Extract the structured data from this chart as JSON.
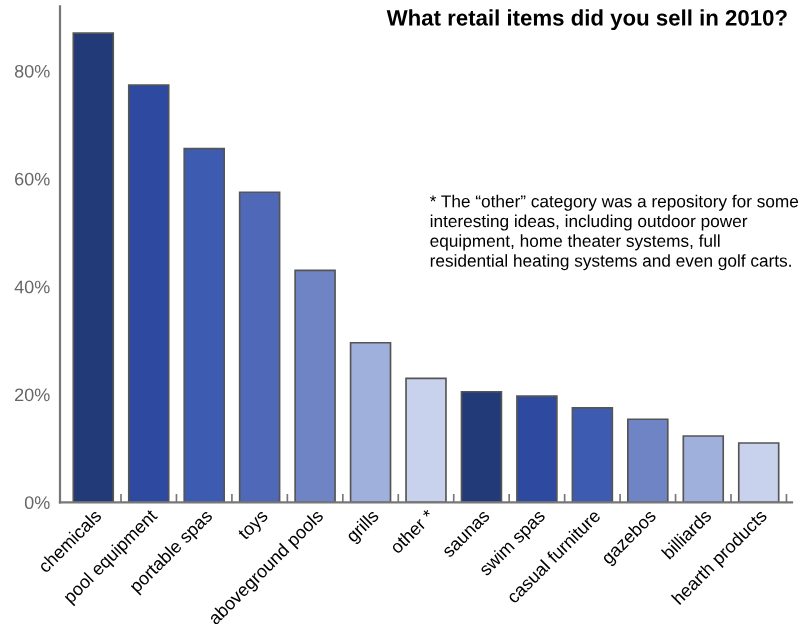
{
  "chart_data": {
    "type": "bar",
    "title": "What retail items did you sell in 2010?",
    "categories": [
      "chemicals",
      "pool equipment",
      "portable spas",
      "toys",
      "aboveground pools",
      "grills",
      "other *",
      "saunas",
      "swim spas",
      "casual furniture",
      "gazebos",
      "billiards",
      "hearth products"
    ],
    "values": [
      87,
      77.4,
      65.6,
      57.5,
      43,
      29.6,
      23,
      20.5,
      19.7,
      17.5,
      15.4,
      12.3,
      11
    ],
    "colors": [
      "#233a78",
      "#2e4aa0",
      "#3d5bb0",
      "#5068b8",
      "#6e84c4",
      "#9fb0dc",
      "#c8d2ec",
      "#233a78",
      "#2e4aa0",
      "#3d5bb0",
      "#6e84c4",
      "#9fb0dc",
      "#c8d2ec"
    ],
    "ylim": [
      0,
      92
    ],
    "yticks": [
      {
        "value": 0,
        "label": "0%"
      },
      {
        "value": 20,
        "label": "20%"
      },
      {
        "value": 40,
        "label": "40%"
      },
      {
        "value": 60,
        "label": "60%"
      },
      {
        "value": 80,
        "label": "80%"
      }
    ],
    "grid": false,
    "legend": false,
    "annotations": [
      "* The “other” category was a repository for some interesting ideas, including outdoor power equipment, home theater systems, full residential heating systems and even golf carts."
    ]
  }
}
